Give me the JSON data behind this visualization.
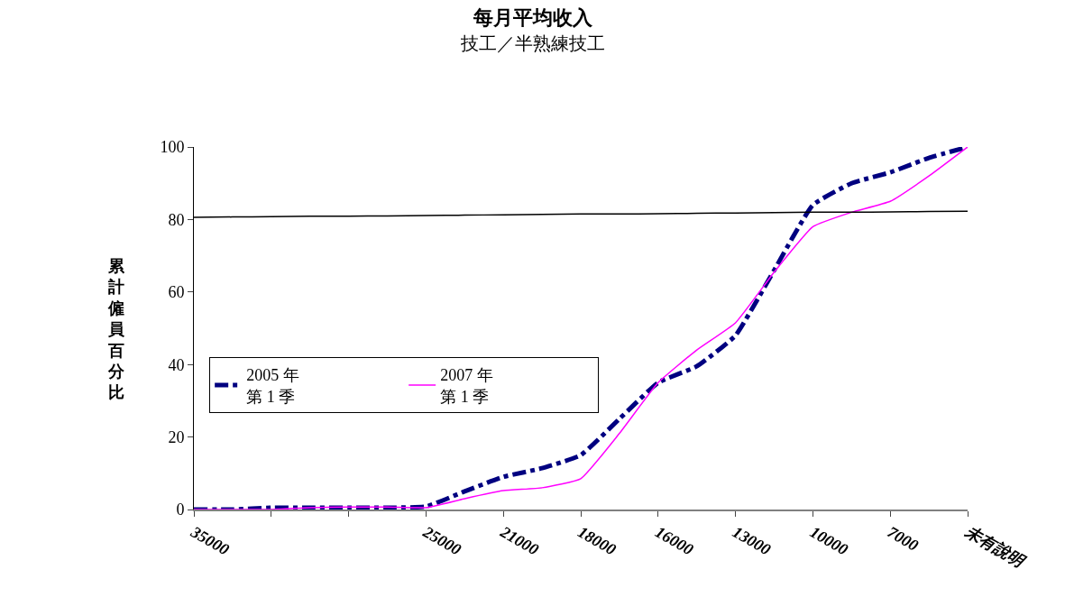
{
  "chart_data": {
    "type": "line",
    "title": "每月平均收入",
    "subtitle": "技工／半熟練技工",
    "ylabel": "累計僱員百分比",
    "categories": [
      "35000",
      null,
      null,
      null,
      null,
      null,
      "25000",
      null,
      "21000",
      null,
      "18000",
      null,
      "16000",
      null,
      "13000",
      null,
      "10000",
      null,
      "7000",
      null,
      "未有說明"
    ],
    "series": [
      {
        "name": "2005 年第 1 季",
        "color": "#000080",
        "line_style": "dashed",
        "values": [
          0,
          0,
          0.5,
          0.5,
          0.5,
          0.5,
          0.8,
          5,
          9,
          11.4,
          15,
          25,
          35,
          39.5,
          48,
          66,
          84,
          90,
          93,
          97,
          100
        ]
      },
      {
        "name": "2007 年第 1 季",
        "color": "#ff00ff",
        "line_style": "solid",
        "values": [
          0,
          0,
          0,
          0.5,
          0.7,
          0.7,
          0.5,
          3,
          5.2,
          6,
          8.5,
          21,
          35,
          44,
          51.5,
          65.5,
          78,
          82,
          85,
          92,
          100
        ]
      },
      {
        "color": "#000000",
        "line_style": "solid",
        "values": [
          80.6,
          80.7,
          80.8,
          80.9,
          80.9,
          81.0,
          81.1,
          81.2,
          81.3,
          81.4,
          81.5,
          81.5,
          81.6,
          81.7,
          81.8,
          81.9,
          82.0,
          82.0,
          82.1,
          82.2,
          82.3
        ]
      }
    ],
    "ylim": [
      0,
      100
    ],
    "yticks": [
      0,
      20,
      40,
      60,
      80,
      100
    ],
    "legend": "left",
    "marker": "none"
  }
}
